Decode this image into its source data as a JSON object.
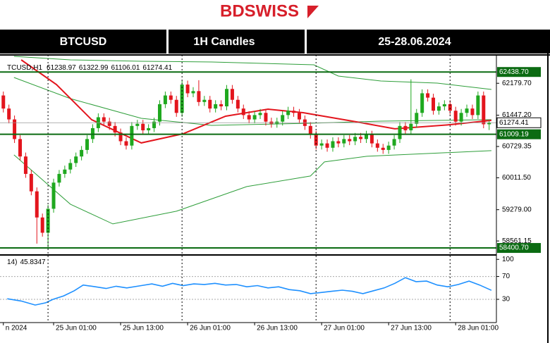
{
  "header": {
    "logo": "BDSWISS",
    "items": [
      "BTCUSD",
      "1H Candles",
      "25-28.06.2024"
    ]
  },
  "chart_data": [
    {
      "type": "candlestick",
      "symbol_label": "TCUSD,H1",
      "up_color": "#1fa81f",
      "down_color": "#e3151d",
      "x": [
        -8,
        -7,
        -6,
        -5,
        -4,
        -3,
        -2,
        -1,
        0,
        1,
        2,
        3,
        4,
        5,
        6,
        7,
        8,
        9,
        10,
        11,
        12,
        13,
        14,
        15,
        16,
        17,
        18,
        19,
        20,
        21,
        22,
        23,
        24,
        25,
        26,
        27,
        28,
        29,
        30,
        31,
        32,
        33,
        34,
        35,
        36,
        37,
        38,
        39,
        40,
        41,
        42,
        43,
        44,
        45,
        46,
        47,
        48,
        49,
        50,
        51,
        52,
        53,
        54,
        55,
        56,
        57,
        58,
        59,
        60,
        61,
        62,
        63,
        64,
        65,
        66,
        67,
        68,
        69,
        70,
        71,
        72,
        73,
        74,
        75,
        76,
        77,
        78,
        79
      ],
      "open": [
        61900,
        61600,
        61350,
        60900,
        60500,
        60100,
        59700,
        59100,
        58750,
        59300,
        59900,
        60100,
        60200,
        60350,
        60500,
        60650,
        60900,
        61150,
        61400,
        61300,
        61200,
        61050,
        60850,
        60750,
        61200,
        61250,
        61100,
        61150,
        61300,
        61700,
        61900,
        61800,
        61500,
        62150,
        61950,
        62000,
        61750,
        61800,
        61600,
        61700,
        61650,
        62050,
        61800,
        61600,
        61450,
        61350,
        61450,
        61500,
        61300,
        61250,
        61300,
        61450,
        61550,
        61500,
        61350,
        61200,
        61000,
        60750,
        60800,
        60700,
        60850,
        60800,
        60900,
        60850,
        60950,
        60900,
        61000,
        60800,
        60700,
        60650,
        60750,
        60900,
        61200,
        61100,
        61250,
        61500,
        61950,
        61850,
        61550,
        61650,
        61700,
        61550,
        61300,
        61500,
        61600,
        61450,
        61900,
        61238.97
      ],
      "high": [
        61990,
        61690,
        61440,
        60990,
        60590,
        60190,
        59790,
        59190,
        59390,
        59990,
        60190,
        60290,
        60440,
        60590,
        60740,
        60990,
        61240,
        61490,
        61490,
        61390,
        61290,
        61140,
        60940,
        61290,
        61340,
        61340,
        61240,
        61390,
        61790,
        61990,
        61990,
        61890,
        62240,
        62240,
        62090,
        62250,
        61890,
        61890,
        61790,
        61790,
        62140,
        62140,
        61890,
        61690,
        61540,
        61540,
        61590,
        61590,
        61390,
        61390,
        61540,
        61640,
        61640,
        61590,
        61440,
        61290,
        61090,
        60890,
        60890,
        60940,
        60940,
        60990,
        60990,
        61040,
        61040,
        61090,
        61090,
        60890,
        60790,
        60840,
        60990,
        61290,
        61290,
        62270,
        61590,
        62040,
        62040,
        61940,
        61740,
        61790,
        61790,
        61640,
        61590,
        61690,
        61690,
        61990,
        61990,
        61322.99
      ],
      "low": [
        61510,
        61260,
        60810,
        60410,
        60010,
        59610,
        58500,
        58660,
        58400,
        59210,
        59810,
        60010,
        60110,
        60260,
        60410,
        60560,
        60810,
        61060,
        61210,
        61110,
        60960,
        60760,
        60660,
        60660,
        61110,
        61010,
        61010,
        61060,
        61210,
        61610,
        61710,
        61410,
        61410,
        61860,
        61860,
        61660,
        61660,
        61510,
        61510,
        61560,
        61560,
        61710,
        61510,
        61360,
        61260,
        61260,
        61360,
        61210,
        61160,
        61160,
        61210,
        61360,
        61410,
        61260,
        61110,
        60910,
        60660,
        60660,
        60610,
        60610,
        60710,
        60710,
        60760,
        60760,
        60810,
        60810,
        60710,
        60610,
        60560,
        60560,
        60660,
        60810,
        61010,
        61010,
        61160,
        61410,
        61760,
        61460,
        61460,
        61560,
        61460,
        61210,
        61210,
        61410,
        61360,
        61360,
        61148,
        61106.01
      ],
      "close": [
        61600,
        61350,
        60900,
        60500,
        60100,
        59700,
        59100,
        58750,
        59300,
        59900,
        60100,
        60200,
        60350,
        60500,
        60650,
        60900,
        61150,
        61400,
        61300,
        61200,
        61050,
        60850,
        60750,
        61200,
        61250,
        61100,
        61150,
        61300,
        61700,
        61900,
        61800,
        61500,
        62150,
        61950,
        62000,
        61750,
        61800,
        61600,
        61700,
        61650,
        62050,
        61800,
        61600,
        61450,
        61350,
        61450,
        61500,
        61300,
        61250,
        61300,
        61450,
        61550,
        61500,
        61350,
        61200,
        61000,
        60750,
        60800,
        60700,
        60850,
        60800,
        60900,
        60850,
        60950,
        60900,
        61000,
        60800,
        60700,
        60650,
        60750,
        60900,
        61200,
        61100,
        61250,
        61500,
        61950,
        61850,
        61550,
        61650,
        61700,
        61550,
        61300,
        61500,
        61600,
        61450,
        61900,
        61238.97,
        61274.41
      ],
      "bands": [
        {
          "color": "#2e9e3a",
          "x": [
            -6.1,
            4.0,
            16.7,
            29.3,
            47.6,
            52.0,
            59.6,
            69.7,
            79.4
          ],
          "values": [
            62798,
            62717,
            62685,
            62669,
            62604,
            62345,
            62232,
            62184,
            62038
          ]
        },
        {
          "color": "#2e9e3a",
          "x": [
            -6.1,
            4.0,
            16.7,
            29.3,
            47.0,
            59.6,
            79.4
          ],
          "values": [
            62313,
            61828,
            61376,
            61214,
            61263,
            61311,
            61344
          ]
        },
        {
          "color": "#2e9e3a",
          "x": [
            -6.1,
            4.0,
            11.6,
            23.0,
            35.6,
            47.0,
            49.5,
            57.1,
            79.4
          ],
          "values": [
            60536,
            59405,
            58953,
            59244,
            59809,
            60051,
            60375,
            60504,
            60633
          ]
        }
      ],
      "moving_average": {
        "color": "#e3151d",
        "x": [
          -4.8,
          1.5,
          7.8,
          16.7,
          24.2,
          31.8,
          39.4,
          45.7,
          54.5,
          62.1,
          72.2,
          79.4
        ],
        "values": [
          62717,
          62152,
          61344,
          60811,
          61021,
          61424,
          61586,
          61505,
          61311,
          61134,
          61231,
          61328
        ]
      },
      "levels": [
        {
          "value": 62438.7,
          "label": "62438.70"
        },
        61009.19,
        {
          "value": 58400.7,
          "label": "58400.70"
        }
      ],
      "level_color": "#0b6b12",
      "last_price": 61274.41,
      "separators": [
        0,
        24,
        48,
        72
      ],
      "xlim": [
        -8.6,
        80.3
      ],
      "xticks": [
        {
          "value": -8,
          "label": "n 2024"
        },
        {
          "value": 1,
          "label": "25 Jun 01:00"
        },
        {
          "value": 13,
          "label": "25 Jun 13:00"
        },
        {
          "value": 25,
          "label": "26 Jun 01:00"
        },
        {
          "value": 37,
          "label": "26 Jun 13:00"
        },
        {
          "value": 49,
          "label": "27 Jun 01:00"
        },
        {
          "value": 61,
          "label": "27 Jun 13:00"
        },
        {
          "value": 73,
          "label": "28 Jun 01:00"
        }
      ],
      "ylim": [
        58240,
        62830
      ],
      "yticks": [
        {
          "value": 62179.7,
          "label": "62179.70"
        },
        {
          "value": 61447.2,
          "label": "61447.20"
        },
        60729.35,
        {
          "value": 60011.5,
          "label": "60011.50"
        },
        {
          "value": 59279.0,
          "label": "59279.00"
        },
        58561.15
      ]
    },
    {
      "type": "line",
      "indicator_label": "14)",
      "color": "#1e90ff",
      "x": [
        -7.3,
        -4.8,
        -2.3,
        -0.4,
        0.9,
        2.8,
        4.7,
        6.3,
        8.5,
        10.4,
        12.2,
        14.1,
        16.7,
        18.6,
        20.5,
        22.3,
        24.2,
        26.1,
        28.0,
        29.9,
        31.8,
        33.7,
        35.6,
        37.5,
        39.4,
        41.3,
        43.2,
        45.1,
        47.0,
        48.9,
        50.8,
        52.7,
        54.5,
        56.4,
        58.3,
        60.2,
        62.1,
        64.0,
        65.9,
        67.8,
        69.7,
        71.6,
        73.5,
        75.4,
        77.3,
        79.4
      ],
      "values": [
        31,
        27,
        20,
        24,
        30,
        36,
        45,
        55,
        52,
        49,
        53,
        50,
        54,
        57,
        53,
        58,
        54,
        57,
        56,
        58,
        55,
        56,
        52,
        54,
        50,
        52,
        47,
        45,
        40,
        42,
        44,
        46,
        44,
        40,
        45,
        50,
        58,
        68,
        61,
        62,
        55,
        52,
        56,
        62,
        55,
        45.8347
      ],
      "levels": [
        30,
        70
      ],
      "ylim": [
        -7,
        104
      ],
      "yticks": [
        100,
        70,
        30
      ]
    }
  ]
}
